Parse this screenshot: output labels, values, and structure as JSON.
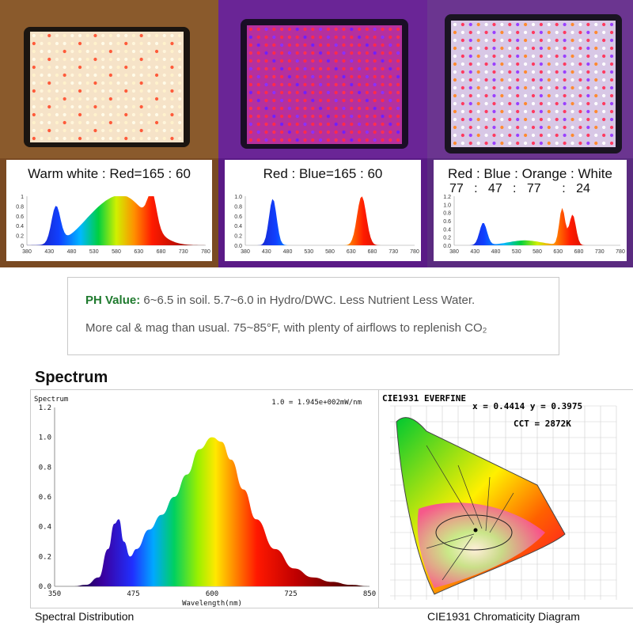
{
  "panels": [
    {
      "label": "Warm white : Red=165 : 60",
      "sub": "",
      "colors": {
        "bg": "#7a4a22",
        "frame": "#f0d9bf",
        "led": "#fbefd9"
      }
    },
    {
      "label": "Red : Blue=165 : 60",
      "sub": "",
      "colors": {
        "bg": "#5a1a86",
        "frame": "#d24dff",
        "led": "#e0409a"
      }
    },
    {
      "label": "Red : Blue : Orange : White",
      "sub": "77   :   47   :   77      :   24",
      "colors": {
        "bg": "#5a2a80",
        "frame": "#e8d8ff",
        "led": "#f5e8ff"
      }
    }
  ],
  "small_charts": [
    {
      "yticks": [
        "1",
        "0.8",
        "0.6",
        "0.4",
        "0.2",
        "0"
      ],
      "xticks": [
        "380",
        "430",
        "480",
        "530",
        "580",
        "630",
        "680",
        "730",
        "780"
      ]
    },
    {
      "yticks": [
        "1.0",
        "0.8",
        "0.6",
        "0.4",
        "0.2",
        "0.0"
      ],
      "xticks": [
        "380",
        "430",
        "480",
        "530",
        "580",
        "630",
        "680",
        "730",
        "780"
      ]
    },
    {
      "yticks": [
        "1.2",
        "1.0",
        "0.8",
        "0.6",
        "0.4",
        "0.2",
        "0.0"
      ],
      "xticks": [
        "380",
        "430",
        "480",
        "530",
        "580",
        "630",
        "680",
        "730",
        "780"
      ]
    }
  ],
  "info": {
    "ph_title": "PH Value:",
    "ph_text": " 6~6.5 in soil. 5.7~6.0 in Hydro/DWC. Less Nutrient Less Water.",
    "more_text": "More cal & mag than usual. 75~85°F, with plenty of airflows to replenish CO₂"
  },
  "spectrum": {
    "section_title": "Spectrum",
    "caption": "Spectral Distribution",
    "chart_data": {
      "type": "area",
      "title": "Spectrum",
      "ylabel": "Spectrum",
      "xlabel": "Wavelength(nm)",
      "note": "1.0 = 1.945e+002mW/nm",
      "xticks": [
        "350",
        "475",
        "600",
        "725",
        "850"
      ],
      "yticks": [
        "1.2",
        "1.0",
        "0.8",
        "0.6",
        "0.4",
        "0.2",
        "0.0"
      ],
      "xlim": [
        350,
        850
      ],
      "ylim": [
        0,
        1.2
      ],
      "x": [
        380,
        400,
        420,
        435,
        445,
        452,
        460,
        470,
        480,
        500,
        520,
        540,
        560,
        580,
        600,
        615,
        630,
        650,
        670,
        700,
        730,
        760,
        790,
        820,
        850
      ],
      "y": [
        0,
        0.01,
        0.06,
        0.25,
        0.42,
        0.45,
        0.3,
        0.2,
        0.25,
        0.38,
        0.48,
        0.6,
        0.75,
        0.92,
        1.0,
        0.97,
        0.85,
        0.65,
        0.45,
        0.25,
        0.12,
        0.06,
        0.03,
        0.01,
        0
      ]
    }
  },
  "cie": {
    "header": "CIE1931   EVERFINE",
    "xy": "x = 0.4414  y = 0.3975",
    "cct": "CCT = 2872K",
    "caption": "CIE1931 Chromaticity Diagram"
  }
}
